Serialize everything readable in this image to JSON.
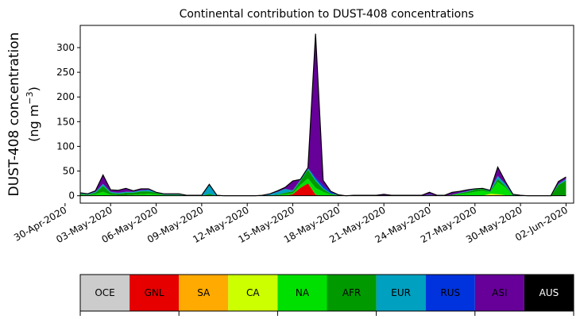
{
  "chart_data": {
    "type": "area",
    "title": "Continental contribution to DUST-408 concentrations",
    "ylabel_line1": "DUST-408 concentration",
    "ylabel_line2_prefix": "(ng m",
    "ylabel_line2_sup": "−3",
    "ylabel_line2_suffix": ")",
    "ylim": [
      -15,
      345
    ],
    "xlim": [
      "2020-05-01T00:00",
      "2020-06-02T12:00"
    ],
    "yticks": [
      0,
      50,
      100,
      150,
      200,
      250,
      300
    ],
    "xticks": [
      {
        "t": "2020-04-30",
        "label": "30-Apr-2020"
      },
      {
        "t": "2020-05-03",
        "label": "03-May-2020"
      },
      {
        "t": "2020-05-06",
        "label": "06-May-2020"
      },
      {
        "t": "2020-05-09",
        "label": "09-May-2020"
      },
      {
        "t": "2020-05-12",
        "label": "12-May-2020"
      },
      {
        "t": "2020-05-15",
        "label": "15-May-2020"
      },
      {
        "t": "2020-05-18",
        "label": "18-May-2020"
      },
      {
        "t": "2020-05-21",
        "label": "21-May-2020"
      },
      {
        "t": "2020-05-24",
        "label": "24-May-2020"
      },
      {
        "t": "2020-05-27",
        "label": "27-May-2020"
      },
      {
        "t": "2020-05-30",
        "label": "30-May-2020"
      },
      {
        "t": "2020-06-02",
        "label": "02-Jun-2020"
      }
    ],
    "x": [
      "2020-05-01T00:00",
      "2020-05-01T12:00",
      "2020-05-02T00:00",
      "2020-05-02T12:00",
      "2020-05-03T00:00",
      "2020-05-03T12:00",
      "2020-05-04T00:00",
      "2020-05-04T12:00",
      "2020-05-05T00:00",
      "2020-05-05T12:00",
      "2020-05-06T00:00",
      "2020-05-06T12:00",
      "2020-05-07T00:00",
      "2020-05-07T12:00",
      "2020-05-08T00:00",
      "2020-05-08T12:00",
      "2020-05-09T00:00",
      "2020-05-09T12:00",
      "2020-05-10T00:00",
      "2020-05-10T12:00",
      "2020-05-11T00:00",
      "2020-05-11T12:00",
      "2020-05-12T00:00",
      "2020-05-12T12:00",
      "2020-05-13T00:00",
      "2020-05-13T12:00",
      "2020-05-14T00:00",
      "2020-05-14T12:00",
      "2020-05-15T00:00",
      "2020-05-15T12:00",
      "2020-05-16T00:00",
      "2020-05-16T12:00",
      "2020-05-17T00:00",
      "2020-05-17T12:00",
      "2020-05-18T00:00",
      "2020-05-18T12:00",
      "2020-05-19T00:00",
      "2020-05-19T12:00",
      "2020-05-20T00:00",
      "2020-05-20T12:00",
      "2020-05-21T00:00",
      "2020-05-21T12:00",
      "2020-05-22T00:00",
      "2020-05-22T12:00",
      "2020-05-23T00:00",
      "2020-05-23T12:00",
      "2020-05-24T00:00",
      "2020-05-24T12:00",
      "2020-05-25T00:00",
      "2020-05-25T12:00",
      "2020-05-26T00:00",
      "2020-05-26T12:00",
      "2020-05-27T00:00",
      "2020-05-27T12:00",
      "2020-05-28T00:00",
      "2020-05-28T12:00",
      "2020-05-29T00:00",
      "2020-05-29T12:00",
      "2020-05-30T00:00",
      "2020-05-30T12:00",
      "2020-05-31T00:00",
      "2020-05-31T12:00",
      "2020-06-01T00:00",
      "2020-06-01T12:00",
      "2020-06-02T00:00"
    ],
    "series": [
      {
        "name": "OCE",
        "color": "#cccccc",
        "values": [
          0,
          0,
          0,
          0,
          0,
          0,
          0,
          0,
          0,
          0,
          0,
          0,
          0,
          0,
          0,
          0,
          0,
          0,
          0,
          0,
          0,
          0,
          0,
          0,
          0,
          0,
          0,
          0,
          0,
          0,
          0,
          0,
          0,
          0,
          0,
          0,
          0,
          0,
          0,
          0,
          0,
          0,
          0,
          0,
          0,
          0,
          0,
          0,
          0,
          0,
          0,
          0,
          0,
          0,
          0,
          0,
          0,
          0,
          0,
          0,
          0,
          0,
          0,
          0,
          0
        ]
      },
      {
        "name": "GNL",
        "color": "#e60000",
        "values": [
          0,
          0,
          0,
          0,
          0,
          0,
          0,
          0,
          0,
          0,
          0,
          0,
          0,
          0,
          0,
          0,
          0,
          0,
          0,
          0,
          0,
          0,
          0,
          0,
          0,
          0,
          0,
          0,
          3,
          16,
          25,
          2,
          0,
          0,
          0,
          0,
          0,
          0,
          0,
          0,
          0,
          0,
          0,
          0,
          0,
          0,
          0,
          0,
          0,
          0,
          0,
          0,
          0,
          0,
          0,
          0,
          0,
          0,
          0,
          0,
          0,
          0,
          0,
          0,
          0
        ]
      },
      {
        "name": "SA",
        "color": "#ffaa00",
        "values": [
          0,
          0,
          0,
          0,
          0,
          0,
          0,
          0,
          0,
          0,
          0,
          0,
          0,
          0,
          0,
          0,
          0,
          0,
          0,
          0,
          0,
          0,
          0,
          0,
          0,
          0,
          0,
          0,
          0,
          0,
          0,
          0,
          0,
          0,
          0,
          0,
          0,
          0,
          0,
          0,
          0,
          0,
          0,
          0,
          0,
          0,
          0,
          0,
          0,
          0,
          0,
          0,
          0,
          0,
          1,
          2,
          1,
          0,
          0,
          0,
          0,
          0,
          0,
          0,
          0
        ]
      },
      {
        "name": "CA",
        "color": "#ccff00",
        "values": [
          0,
          0,
          0,
          0,
          0,
          0,
          0,
          0,
          0,
          0,
          0,
          0,
          0,
          0,
          0,
          0,
          0,
          0,
          0,
          0,
          0,
          0,
          0,
          0,
          0,
          0,
          0,
          0,
          0,
          0,
          0,
          0,
          0,
          0,
          0,
          0,
          0,
          0,
          0,
          0,
          0,
          0,
          0,
          0,
          0,
          0,
          0,
          0,
          0,
          0,
          0,
          0,
          0,
          0,
          3,
          1,
          0,
          0,
          0,
          0,
          0,
          0,
          0,
          0,
          0
        ]
      },
      {
        "name": "NA",
        "color": "#00e000",
        "values": [
          2,
          1,
          3,
          8,
          2,
          1,
          1,
          2,
          3,
          4,
          3,
          1,
          1,
          1,
          0,
          0,
          0,
          1,
          0,
          0,
          0,
          0,
          0,
          0,
          0,
          0,
          1,
          3,
          2,
          6,
          10,
          14,
          8,
          2,
          1,
          0,
          0,
          0,
          0,
          0,
          0,
          0,
          0,
          0,
          0,
          0,
          0,
          0,
          0,
          1,
          3,
          5,
          8,
          10,
          3,
          25,
          16,
          0,
          0,
          0,
          0,
          0,
          0,
          0,
          0
        ]
      },
      {
        "name": "AFR",
        "color": "#009900",
        "values": [
          2,
          1,
          3,
          12,
          4,
          3,
          5,
          4,
          6,
          5,
          3,
          1,
          1,
          1,
          0,
          0,
          0,
          3,
          0,
          0,
          0,
          0,
          0,
          0,
          0,
          1,
          1,
          3,
          4,
          8,
          18,
          14,
          6,
          2,
          0,
          0,
          0,
          0,
          0,
          0,
          0,
          0,
          0,
          0,
          0,
          0,
          1,
          0,
          0,
          1,
          2,
          3,
          5,
          4,
          2,
          6,
          3,
          1,
          0,
          0,
          0,
          0,
          0,
          22,
          31
        ]
      },
      {
        "name": "EUR",
        "color": "#00a0c0",
        "values": [
          1,
          1,
          2,
          4,
          2,
          2,
          2,
          2,
          2,
          3,
          1,
          1,
          1,
          1,
          0,
          0,
          0,
          18,
          1,
          0,
          0,
          0,
          0,
          0,
          0,
          2,
          6,
          8,
          2,
          2,
          3,
          4,
          2,
          1,
          0,
          0,
          0,
          0,
          0,
          0,
          0,
          0,
          0,
          0,
          0,
          0,
          1,
          0,
          0,
          0,
          1,
          1,
          1,
          1,
          2,
          6,
          4,
          1,
          1,
          0,
          0,
          0,
          0,
          2,
          3
        ]
      },
      {
        "name": "RUS",
        "color": "#0033dd",
        "values": [
          0,
          0,
          0,
          0,
          0,
          0,
          0,
          0,
          0,
          0,
          0,
          0,
          0,
          0,
          0,
          0,
          0,
          0,
          0,
          0,
          0,
          0,
          0,
          0,
          0,
          0,
          0,
          0,
          0,
          0,
          0,
          3,
          5,
          3,
          0,
          0,
          0,
          0,
          0,
          0,
          0,
          0,
          0,
          0,
          0,
          0,
          0,
          0,
          0,
          0,
          0,
          0,
          0,
          0,
          0,
          0,
          0,
          0,
          0,
          0,
          0,
          0,
          0,
          0,
          0
        ]
      },
      {
        "name": "ASI",
        "color": "#660099",
        "values": [
          1,
          1,
          2,
          18,
          4,
          5,
          7,
          2,
          3,
          2,
          0,
          1,
          1,
          1,
          1,
          1,
          1,
          1,
          0,
          0,
          0,
          0,
          0,
          0,
          1,
          1,
          2,
          3,
          19,
          1,
          1,
          291,
          10,
          1,
          1,
          0,
          1,
          1,
          1,
          1,
          3,
          1,
          1,
          1,
          1,
          1,
          5,
          1,
          1,
          5,
          3,
          3,
          0,
          0,
          0,
          18,
          5,
          1,
          0,
          0,
          0,
          0,
          0,
          5,
          4
        ]
      },
      {
        "name": "AUS",
        "color": "#000000",
        "values": [
          0,
          0,
          0,
          0,
          0,
          0,
          0,
          0,
          0,
          0,
          0,
          0,
          0,
          0,
          0,
          0,
          0,
          0,
          0,
          0,
          0,
          0,
          0,
          0,
          0,
          0,
          0,
          0,
          0,
          0,
          0,
          0,
          0,
          0,
          0,
          0,
          0,
          0,
          0,
          0,
          0,
          0,
          0,
          0,
          0,
          0,
          0,
          0,
          0,
          0,
          0,
          0,
          0,
          0,
          0,
          0,
          0,
          0,
          0,
          0,
          0,
          0,
          0,
          0,
          0
        ]
      }
    ],
    "legend_placement": "bottom"
  }
}
